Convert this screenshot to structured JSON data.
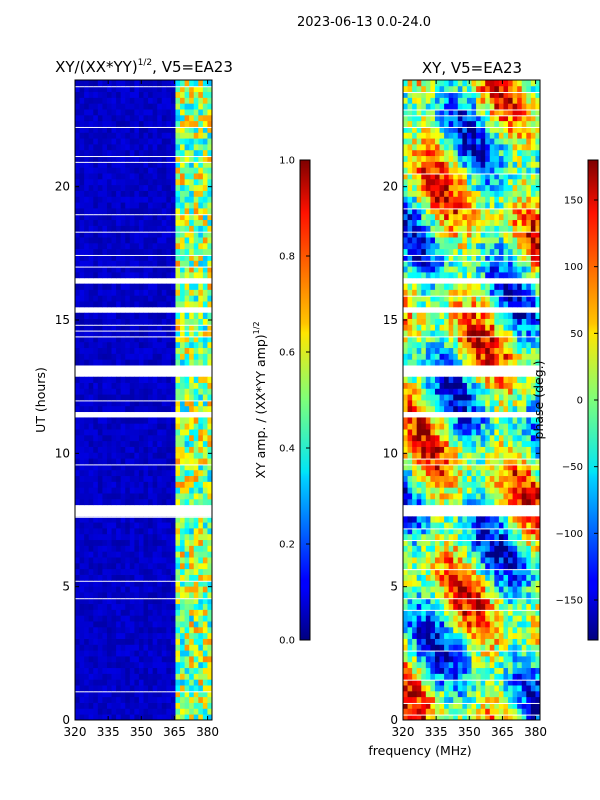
{
  "figure": {
    "suptitle": "2023-06-13 0.0-24.0",
    "xlabel": "frequency (MHz)"
  },
  "chart_data": [
    {
      "type": "heatmap",
      "title": "XY/(XX*YY)",
      "title_exponent": "1/2",
      "title_suffix": ", V5=EA23",
      "xlabel": "",
      "ylabel": "UT (hours)",
      "xlim": [
        320,
        382
      ],
      "ylim": [
        0,
        24
      ],
      "xticks": [
        "320",
        "335",
        "350",
        "365",
        "380"
      ],
      "xtick_values": [
        320,
        335,
        350,
        365,
        380
      ],
      "yticks": [
        "0",
        "5",
        "10",
        "15",
        "20"
      ],
      "ytick_values": [
        0,
        5,
        10,
        15,
        20
      ],
      "colormap": "jet",
      "colorbar": {
        "label": "XY amp. / (XX*YY amp)",
        "label_exponent": "1/2",
        "range": [
          0.0,
          1.0
        ],
        "ticks": [
          "0.0",
          "0.2",
          "0.4",
          "0.6",
          "0.8",
          "1.0"
        ],
        "tick_values": [
          0.0,
          0.2,
          0.4,
          0.6,
          0.8,
          1.0
        ]
      },
      "flagged_time_ranges_hours": [
        [
          7.6,
          8.0
        ],
        [
          11.4,
          11.6
        ],
        [
          12.8,
          13.2
        ],
        [
          15.3,
          15.6
        ],
        [
          16.3,
          16.6
        ]
      ],
      "notes": "Low amplitude (~0.05) below 364 MHz; elevated amplitude (0.3-0.8) in channels 364-382 MHz"
    },
    {
      "type": "heatmap",
      "title": "XY, V5=EA23",
      "xlabel": "",
      "ylabel": "",
      "xlim": [
        320,
        382
      ],
      "ylim": [
        0,
        24
      ],
      "xticks": [
        "320",
        "335",
        "350",
        "365",
        "380"
      ],
      "xtick_values": [
        320,
        335,
        350,
        365,
        380
      ],
      "yticks": [
        "0",
        "5",
        "10",
        "15",
        "20"
      ],
      "ytick_values": [
        0,
        5,
        10,
        15,
        20
      ],
      "colormap": "jet",
      "colorbar": {
        "label": "phase (deg.)",
        "range": [
          -180,
          180
        ],
        "ticks": [
          "−150",
          "−100",
          "−50",
          "0",
          "50",
          "100",
          "150"
        ],
        "tick_values": [
          -150,
          -100,
          -50,
          0,
          50,
          100,
          150
        ]
      },
      "flagged_time_ranges_hours": [
        [
          7.6,
          8.0
        ],
        [
          11.4,
          11.6
        ],
        [
          12.8,
          13.2
        ],
        [
          15.3,
          15.6
        ],
        [
          16.3,
          16.6
        ]
      ],
      "notes": "Phase varies across full range -180 to 180 deg with band-like structure over time"
    }
  ]
}
